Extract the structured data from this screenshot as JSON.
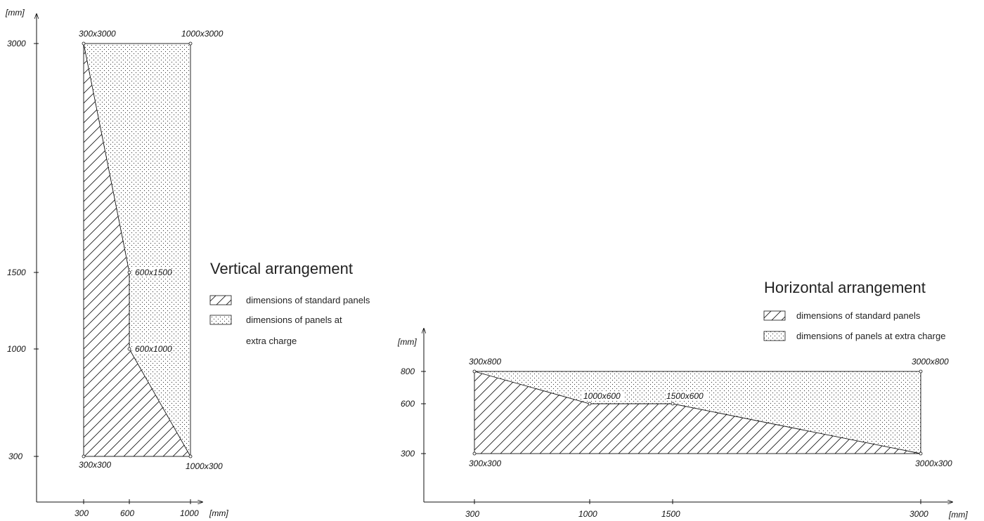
{
  "vertical": {
    "title": "Vertical arrangement",
    "y_unit": "[mm]",
    "x_unit": "[mm]",
    "y_ticks": [
      "3000",
      "1500",
      "1000",
      "300"
    ],
    "x_ticks": [
      "300",
      "600",
      "1000"
    ],
    "legend": [
      {
        "pattern": "hatch",
        "label": "dimensions of standard panels"
      },
      {
        "pattern": "dots",
        "label": "dimensions of panels at"
      },
      {
        "pattern": "none",
        "label": "extra charge"
      }
    ],
    "points": [
      {
        "label": "300x3000"
      },
      {
        "label": "1000x3000"
      },
      {
        "label": "600x1500"
      },
      {
        "label": "600x1000"
      },
      {
        "label": "300x300"
      },
      {
        "label": "1000x300"
      }
    ]
  },
  "horizontal": {
    "title": "Horizontal arrangement",
    "y_unit": "[mm]",
    "x_unit": "[mm]",
    "y_ticks": [
      "800",
      "600",
      "300"
    ],
    "x_ticks": [
      "300",
      "1000",
      "1500",
      "3000"
    ],
    "legend": [
      {
        "pattern": "hatch",
        "label": "dimensions of standard panels"
      },
      {
        "pattern": "dots",
        "label": "dimensions of panels at extra charge"
      }
    ],
    "points": [
      {
        "label": "300x800"
      },
      {
        "label": "3000x800"
      },
      {
        "label": "1000x600"
      },
      {
        "label": "1500x600"
      },
      {
        "label": "300x300"
      },
      {
        "label": "3000x300"
      }
    ]
  }
}
